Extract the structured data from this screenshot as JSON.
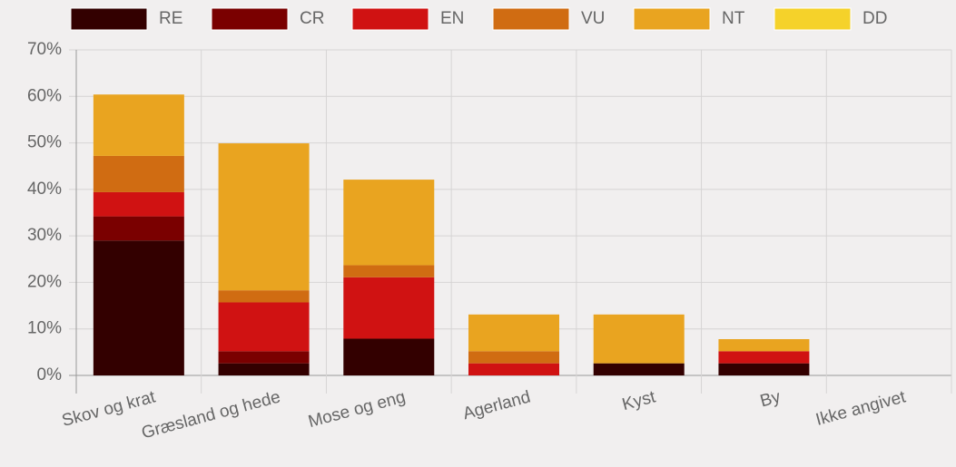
{
  "chart_data": {
    "type": "stacked_bar",
    "categories": [
      "Skov og krat",
      "Græsland og hede",
      "Mose og eng",
      "Agerland",
      "Kyst",
      "By",
      "Ikke angivet"
    ],
    "series": [
      {
        "name": "RE",
        "color": "#330000",
        "values": [
          29,
          2.6,
          7.9,
          0,
          2.6,
          2.6,
          0
        ]
      },
      {
        "name": "CR",
        "color": "#7a0000",
        "values": [
          5.2,
          2.6,
          0,
          0,
          0,
          0,
          0
        ]
      },
      {
        "name": "EN",
        "color": "#d01212",
        "values": [
          5.2,
          10.5,
          13.2,
          2.6,
          0,
          2.6,
          0
        ]
      },
      {
        "name": "VU",
        "color": "#d06c12",
        "values": [
          7.8,
          2.6,
          2.6,
          2.6,
          0,
          0,
          0
        ]
      },
      {
        "name": "NT",
        "color": "#e9a420",
        "values": [
          13.2,
          31.6,
          18.4,
          7.9,
          10.5,
          2.6,
          0
        ]
      },
      {
        "name": "DD",
        "color": "#f5d22a",
        "values": [
          0,
          0,
          0,
          0,
          0,
          0,
          0
        ]
      }
    ],
    "ylim": [
      0,
      70
    ],
    "yticks": [
      {
        "value": 0,
        "label": "0%"
      },
      {
        "value": 10,
        "label": "10%"
      },
      {
        "value": 20,
        "label": "20%"
      },
      {
        "value": 30,
        "label": "30%"
      },
      {
        "value": 40,
        "label": "40%"
      },
      {
        "value": 50,
        "label": "50%"
      },
      {
        "value": 60,
        "label": "60%"
      },
      {
        "value": 70,
        "label": "70%"
      }
    ],
    "grid": true,
    "legend": "top"
  }
}
